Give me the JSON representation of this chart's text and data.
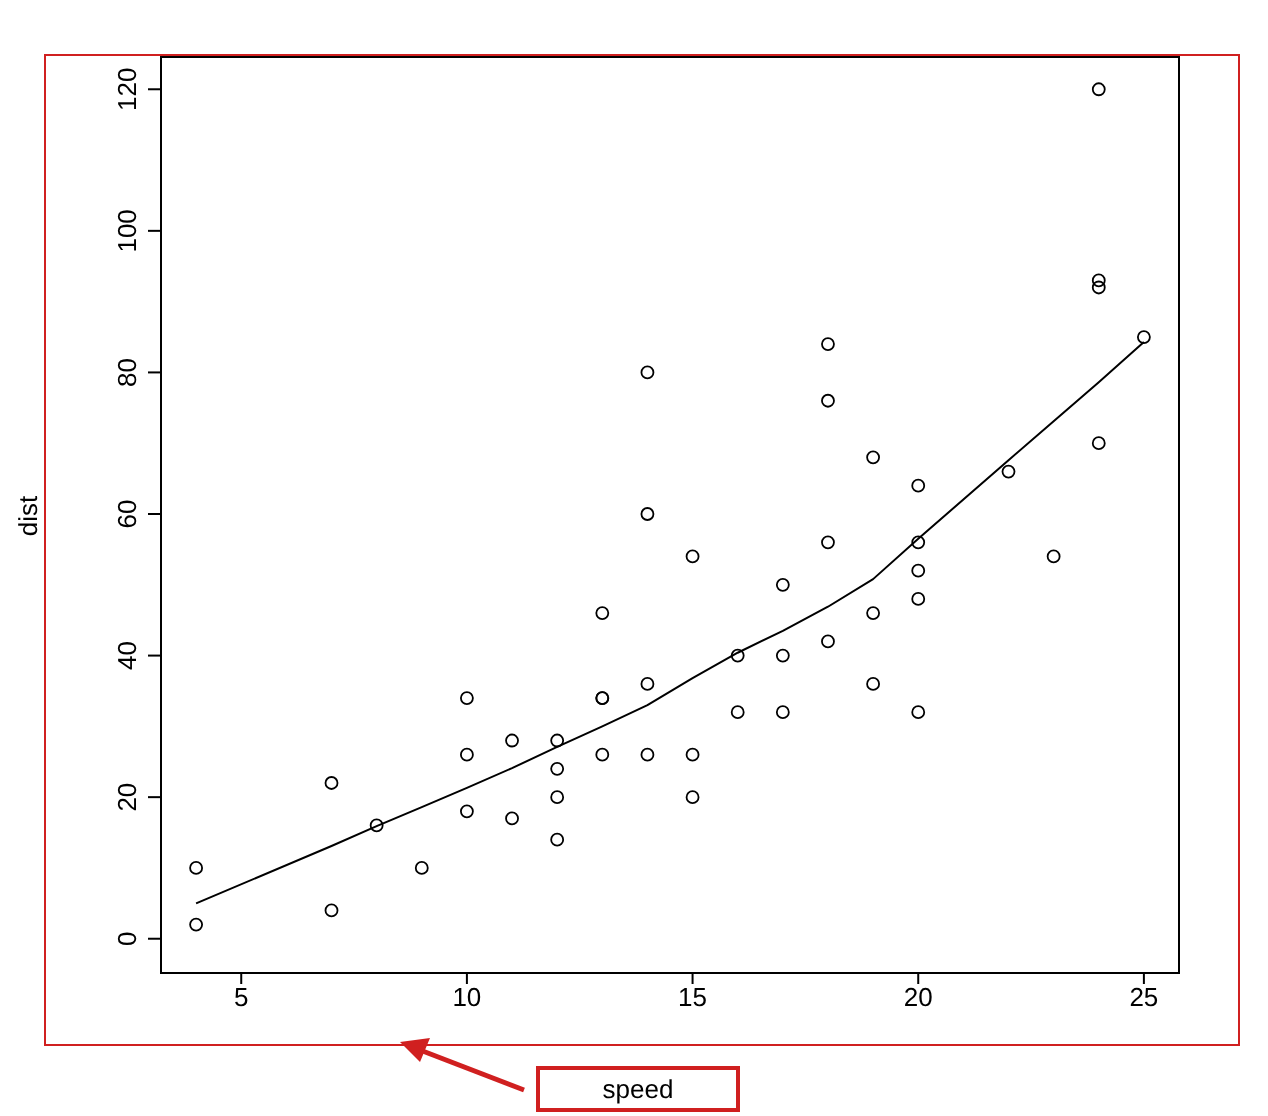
{
  "chart_data": {
    "type": "scatter",
    "xlabel": "speed",
    "ylabel": "dist",
    "xlim": [
      3.2,
      25.8
    ],
    "ylim": [
      -4.7,
      124.7
    ],
    "xticks": [
      5,
      10,
      15,
      20,
      25
    ],
    "yticks": [
      0,
      20,
      40,
      60,
      80,
      100,
      120
    ],
    "marker": "circle",
    "series": [
      {
        "color": "#000000",
        "x": [
          4,
          4,
          7,
          7,
          8,
          9,
          10,
          10,
          10,
          11,
          11,
          12,
          12,
          12,
          12,
          13,
          13,
          13,
          13,
          14,
          14,
          14,
          14,
          15,
          15,
          15,
          16,
          16,
          17,
          17,
          17,
          18,
          18,
          18,
          18,
          19,
          19,
          19,
          20,
          20,
          20,
          20,
          20,
          22,
          23,
          24,
          24,
          24,
          24,
          25
        ],
        "values": [
          2,
          10,
          4,
          22,
          16,
          10,
          18,
          26,
          34,
          17,
          28,
          14,
          20,
          24,
          28,
          26,
          34,
          34,
          46,
          26,
          36,
          60,
          80,
          20,
          26,
          54,
          32,
          40,
          32,
          40,
          50,
          42,
          56,
          76,
          84,
          36,
          46,
          68,
          32,
          48,
          52,
          56,
          64,
          66,
          54,
          70,
          92,
          93,
          120,
          85
        ]
      },
      {
        "type": "line",
        "color": "#000000",
        "marker": "none",
        "x": [
          4,
          7,
          8,
          9,
          10,
          11,
          12,
          13,
          14,
          15,
          16,
          17,
          18,
          19,
          20,
          22,
          23,
          24,
          25
        ],
        "values": [
          5.0,
          13.1,
          15.9,
          18.6,
          21.3,
          24.1,
          27.1,
          30.0,
          33.0,
          36.8,
          40.4,
          43.5,
          46.9,
          50.8,
          56.5,
          67.6,
          73.1,
          78.6,
          84.3
        ]
      }
    ]
  }
}
